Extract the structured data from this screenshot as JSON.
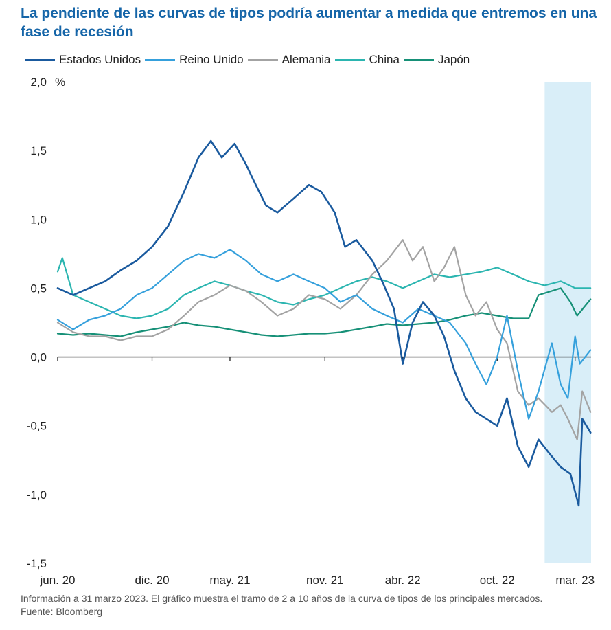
{
  "title": "La pendiente de las curvas de tipos podría aumentar a medida que entremos en una fase de recesión",
  "footnote": "Información a 31 marzo 2023. El gráfico muestra el tramo de 2 a 10 años de la curva de tipos de los principales mercados. Fuente: Bloomberg",
  "chart_data": {
    "type": "line",
    "ylabel": "%",
    "ylim": [
      -1.5,
      2.0
    ],
    "yticks": [
      {
        "value": 2.0,
        "label": "2,0"
      },
      {
        "value": 1.5,
        "label": "1,5"
      },
      {
        "value": 1.0,
        "label": "1,0"
      },
      {
        "value": 0.5,
        "label": "0,5"
      },
      {
        "value": 0.0,
        "label": "0,0"
      },
      {
        "value": -0.5,
        "label": "-0,5"
      },
      {
        "value": -1.0,
        "label": "-1,0"
      },
      {
        "value": -1.5,
        "label": "-1,5"
      }
    ],
    "xlim": [
      "2020-06-01",
      "2023-04-01"
    ],
    "xticks": [
      {
        "date": "2020-06-01",
        "label": "jun. 20"
      },
      {
        "date": "2020-12-01",
        "label": "dic. 20"
      },
      {
        "date": "2021-05-01",
        "label": "may. 21"
      },
      {
        "date": "2021-11-01",
        "label": "nov. 21"
      },
      {
        "date": "2022-04-01",
        "label": "abr. 22"
      },
      {
        "date": "2022-10-01",
        "label": "oct. 22"
      },
      {
        "date": "2023-03-01",
        "label": "mar. 23"
      }
    ],
    "grid": false,
    "legend_position": "top",
    "shaded_region": {
      "from": "2023-01-01",
      "to": "2023-04-01",
      "color": "#d9eef8"
    },
    "series": [
      {
        "name": "Estados Unidos",
        "color": "#1a5a9e",
        "width": 2.6,
        "points": [
          [
            "2020-06-01",
            0.5
          ],
          [
            "2020-07-01",
            0.45
          ],
          [
            "2020-08-01",
            0.5
          ],
          [
            "2020-09-01",
            0.55
          ],
          [
            "2020-10-01",
            0.63
          ],
          [
            "2020-11-01",
            0.7
          ],
          [
            "2020-12-01",
            0.8
          ],
          [
            "2021-01-01",
            0.95
          ],
          [
            "2021-02-01",
            1.2
          ],
          [
            "2021-03-01",
            1.45
          ],
          [
            "2021-03-25",
            1.57
          ],
          [
            "2021-04-15",
            1.45
          ],
          [
            "2021-05-10",
            1.55
          ],
          [
            "2021-06-01",
            1.4
          ],
          [
            "2021-06-20",
            1.25
          ],
          [
            "2021-07-10",
            1.1
          ],
          [
            "2021-08-01",
            1.05
          ],
          [
            "2021-09-01",
            1.15
          ],
          [
            "2021-10-01",
            1.25
          ],
          [
            "2021-10-25",
            1.2
          ],
          [
            "2021-11-20",
            1.05
          ],
          [
            "2021-12-10",
            0.8
          ],
          [
            "2022-01-01",
            0.85
          ],
          [
            "2022-02-01",
            0.7
          ],
          [
            "2022-02-20",
            0.55
          ],
          [
            "2022-03-15",
            0.35
          ],
          [
            "2022-04-01",
            -0.05
          ],
          [
            "2022-04-20",
            0.25
          ],
          [
            "2022-05-10",
            0.4
          ],
          [
            "2022-06-01",
            0.3
          ],
          [
            "2022-06-20",
            0.15
          ],
          [
            "2022-07-10",
            -0.1
          ],
          [
            "2022-08-01",
            -0.3
          ],
          [
            "2022-08-20",
            -0.4
          ],
          [
            "2022-09-10",
            -0.45
          ],
          [
            "2022-10-01",
            -0.5
          ],
          [
            "2022-10-20",
            -0.3
          ],
          [
            "2022-11-10",
            -0.65
          ],
          [
            "2022-12-01",
            -0.8
          ],
          [
            "2022-12-20",
            -0.6
          ],
          [
            "2023-01-10",
            -0.7
          ],
          [
            "2023-02-01",
            -0.8
          ],
          [
            "2023-02-20",
            -0.85
          ],
          [
            "2023-03-08",
            -1.08
          ],
          [
            "2023-03-15",
            -0.45
          ],
          [
            "2023-03-31",
            -0.55
          ]
        ]
      },
      {
        "name": "Reino Unido",
        "color": "#35a0dc",
        "width": 2.2,
        "points": [
          [
            "2020-06-01",
            0.27
          ],
          [
            "2020-07-01",
            0.2
          ],
          [
            "2020-08-01",
            0.27
          ],
          [
            "2020-09-01",
            0.3
          ],
          [
            "2020-10-01",
            0.35
          ],
          [
            "2020-11-01",
            0.45
          ],
          [
            "2020-12-01",
            0.5
          ],
          [
            "2021-01-01",
            0.6
          ],
          [
            "2021-02-01",
            0.7
          ],
          [
            "2021-03-01",
            0.75
          ],
          [
            "2021-04-01",
            0.72
          ],
          [
            "2021-05-01",
            0.78
          ],
          [
            "2021-06-01",
            0.7
          ],
          [
            "2021-07-01",
            0.6
          ],
          [
            "2021-08-01",
            0.55
          ],
          [
            "2021-09-01",
            0.6
          ],
          [
            "2021-10-01",
            0.55
          ],
          [
            "2021-11-01",
            0.5
          ],
          [
            "2021-12-01",
            0.4
          ],
          [
            "2022-01-01",
            0.45
          ],
          [
            "2022-02-01",
            0.35
          ],
          [
            "2022-03-01",
            0.3
          ],
          [
            "2022-04-01",
            0.25
          ],
          [
            "2022-05-01",
            0.35
          ],
          [
            "2022-06-01",
            0.3
          ],
          [
            "2022-07-01",
            0.25
          ],
          [
            "2022-08-01",
            0.1
          ],
          [
            "2022-08-20",
            -0.05
          ],
          [
            "2022-09-10",
            -0.2
          ],
          [
            "2022-10-01",
            0.0
          ],
          [
            "2022-10-20",
            0.3
          ],
          [
            "2022-11-10",
            -0.1
          ],
          [
            "2022-12-01",
            -0.45
          ],
          [
            "2022-12-20",
            -0.25
          ],
          [
            "2023-01-15",
            0.1
          ],
          [
            "2023-02-01",
            -0.2
          ],
          [
            "2023-02-15",
            -0.3
          ],
          [
            "2023-03-01",
            0.15
          ],
          [
            "2023-03-10",
            -0.05
          ],
          [
            "2023-03-31",
            0.05
          ]
        ]
      },
      {
        "name": "Alemania",
        "color": "#a3a3a3",
        "width": 2.2,
        "points": [
          [
            "2020-06-01",
            0.25
          ],
          [
            "2020-07-01",
            0.18
          ],
          [
            "2020-08-01",
            0.15
          ],
          [
            "2020-09-01",
            0.15
          ],
          [
            "2020-10-01",
            0.12
          ],
          [
            "2020-11-01",
            0.15
          ],
          [
            "2020-12-01",
            0.15
          ],
          [
            "2021-01-01",
            0.2
          ],
          [
            "2021-02-01",
            0.3
          ],
          [
            "2021-03-01",
            0.4
          ],
          [
            "2021-04-01",
            0.45
          ],
          [
            "2021-05-01",
            0.52
          ],
          [
            "2021-06-01",
            0.48
          ],
          [
            "2021-07-01",
            0.4
          ],
          [
            "2021-08-01",
            0.3
          ],
          [
            "2021-09-01",
            0.35
          ],
          [
            "2021-10-01",
            0.45
          ],
          [
            "2021-11-01",
            0.42
          ],
          [
            "2021-12-01",
            0.35
          ],
          [
            "2022-01-01",
            0.45
          ],
          [
            "2022-02-01",
            0.6
          ],
          [
            "2022-03-01",
            0.7
          ],
          [
            "2022-04-01",
            0.85
          ],
          [
            "2022-04-20",
            0.7
          ],
          [
            "2022-05-10",
            0.8
          ],
          [
            "2022-06-01",
            0.55
          ],
          [
            "2022-06-20",
            0.65
          ],
          [
            "2022-07-10",
            0.8
          ],
          [
            "2022-08-01",
            0.45
          ],
          [
            "2022-08-20",
            0.3
          ],
          [
            "2022-09-10",
            0.4
          ],
          [
            "2022-10-01",
            0.2
          ],
          [
            "2022-10-20",
            0.1
          ],
          [
            "2022-11-10",
            -0.25
          ],
          [
            "2022-12-01",
            -0.35
          ],
          [
            "2022-12-20",
            -0.3
          ],
          [
            "2023-01-15",
            -0.4
          ],
          [
            "2023-02-01",
            -0.35
          ],
          [
            "2023-02-15",
            -0.45
          ],
          [
            "2023-03-05",
            -0.6
          ],
          [
            "2023-03-15",
            -0.25
          ],
          [
            "2023-03-31",
            -0.4
          ]
        ]
      },
      {
        "name": "China",
        "color": "#2bb5b0",
        "width": 2.2,
        "points": [
          [
            "2020-06-01",
            0.62
          ],
          [
            "2020-06-10",
            0.72
          ],
          [
            "2020-07-01",
            0.45
          ],
          [
            "2020-08-01",
            0.4
          ],
          [
            "2020-09-01",
            0.35
          ],
          [
            "2020-10-01",
            0.3
          ],
          [
            "2020-11-01",
            0.28
          ],
          [
            "2020-12-01",
            0.3
          ],
          [
            "2021-01-01",
            0.35
          ],
          [
            "2021-02-01",
            0.45
          ],
          [
            "2021-03-01",
            0.5
          ],
          [
            "2021-04-01",
            0.55
          ],
          [
            "2021-05-01",
            0.52
          ],
          [
            "2021-06-01",
            0.48
          ],
          [
            "2021-07-01",
            0.45
          ],
          [
            "2021-08-01",
            0.4
          ],
          [
            "2021-09-01",
            0.38
          ],
          [
            "2021-10-01",
            0.42
          ],
          [
            "2021-11-01",
            0.45
          ],
          [
            "2021-12-01",
            0.5
          ],
          [
            "2022-01-01",
            0.55
          ],
          [
            "2022-02-01",
            0.58
          ],
          [
            "2022-03-01",
            0.55
          ],
          [
            "2022-04-01",
            0.5
          ],
          [
            "2022-05-01",
            0.55
          ],
          [
            "2022-06-01",
            0.6
          ],
          [
            "2022-07-01",
            0.58
          ],
          [
            "2022-08-01",
            0.6
          ],
          [
            "2022-09-01",
            0.62
          ],
          [
            "2022-10-01",
            0.65
          ],
          [
            "2022-11-01",
            0.6
          ],
          [
            "2022-12-01",
            0.55
          ],
          [
            "2023-01-01",
            0.52
          ],
          [
            "2023-02-01",
            0.55
          ],
          [
            "2023-03-01",
            0.5
          ],
          [
            "2023-03-31",
            0.5
          ]
        ]
      },
      {
        "name": "Japón",
        "color": "#169077",
        "width": 2.2,
        "points": [
          [
            "2020-06-01",
            0.17
          ],
          [
            "2020-07-01",
            0.16
          ],
          [
            "2020-08-01",
            0.17
          ],
          [
            "2020-09-01",
            0.16
          ],
          [
            "2020-10-01",
            0.15
          ],
          [
            "2020-11-01",
            0.18
          ],
          [
            "2020-12-01",
            0.2
          ],
          [
            "2021-01-01",
            0.22
          ],
          [
            "2021-02-01",
            0.25
          ],
          [
            "2021-03-01",
            0.23
          ],
          [
            "2021-04-01",
            0.22
          ],
          [
            "2021-05-01",
            0.2
          ],
          [
            "2021-06-01",
            0.18
          ],
          [
            "2021-07-01",
            0.16
          ],
          [
            "2021-08-01",
            0.15
          ],
          [
            "2021-09-01",
            0.16
          ],
          [
            "2021-10-01",
            0.17
          ],
          [
            "2021-11-01",
            0.17
          ],
          [
            "2021-12-01",
            0.18
          ],
          [
            "2022-01-01",
            0.2
          ],
          [
            "2022-02-01",
            0.22
          ],
          [
            "2022-03-01",
            0.24
          ],
          [
            "2022-04-01",
            0.23
          ],
          [
            "2022-05-01",
            0.24
          ],
          [
            "2022-06-01",
            0.25
          ],
          [
            "2022-07-01",
            0.27
          ],
          [
            "2022-08-01",
            0.3
          ],
          [
            "2022-09-01",
            0.32
          ],
          [
            "2022-10-01",
            0.3
          ],
          [
            "2022-11-01",
            0.28
          ],
          [
            "2022-12-01",
            0.28
          ],
          [
            "2022-12-20",
            0.45
          ],
          [
            "2023-01-15",
            0.48
          ],
          [
            "2023-02-01",
            0.5
          ],
          [
            "2023-02-20",
            0.4
          ],
          [
            "2023-03-05",
            0.3
          ],
          [
            "2023-03-31",
            0.42
          ]
        ]
      }
    ]
  }
}
